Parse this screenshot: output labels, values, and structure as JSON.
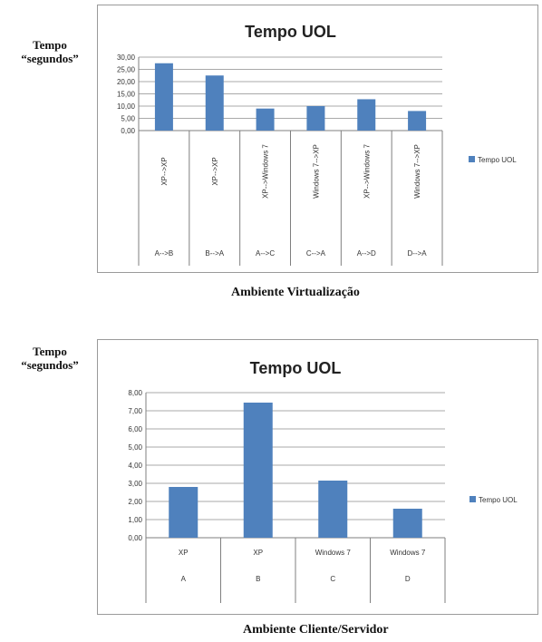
{
  "colors": {
    "bar": "#4f81bd",
    "grid": "#8c8c8c",
    "axis": "#7f7f7f",
    "text": "#333333"
  },
  "side_label": {
    "line1": "Tempo",
    "line2": "“segundos”"
  },
  "chart_data": [
    {
      "type": "bar",
      "title": "Tempo UOL",
      "legend": "Tempo UOL",
      "legend_position": "right",
      "grid": true,
      "ylim": [
        0,
        30
      ],
      "yticks": [
        "0,00",
        "5,00",
        "10,00",
        "15,00",
        "20,00",
        "25,00",
        "30,00"
      ],
      "categories": [
        {
          "top": "XP-->XP",
          "bottom": "A-->B"
        },
        {
          "top": "XP-->XP",
          "bottom": "B-->A"
        },
        {
          "top": "XP-->Windows 7",
          "bottom": "A-->C"
        },
        {
          "top": "Windows 7-->XP",
          "bottom": "C-->A"
        },
        {
          "top": "XP-->Windows 7",
          "bottom": "A-->D"
        },
        {
          "top": "Windows 7-->XP",
          "bottom": "D-->A"
        }
      ],
      "values": [
        27.5,
        22.5,
        9.0,
        10.0,
        12.8,
        8.0
      ],
      "caption": "Ambiente Virtualização"
    },
    {
      "type": "bar",
      "title": "Tempo UOL",
      "legend": "Tempo UOL",
      "legend_position": "right",
      "grid": true,
      "ylim": [
        0,
        8
      ],
      "yticks": [
        "0,00",
        "1,00",
        "2,00",
        "3,00",
        "4,00",
        "5,00",
        "6,00",
        "7,00",
        "8,00"
      ],
      "categories": [
        {
          "top": "XP",
          "bottom": "A"
        },
        {
          "top": "XP",
          "bottom": "B"
        },
        {
          "top": "Windows 7",
          "bottom": "C"
        },
        {
          "top": "Windows 7",
          "bottom": "D"
        }
      ],
      "values": [
        2.8,
        7.45,
        3.15,
        1.6
      ],
      "caption": "Ambiente Cliente/Servidor"
    }
  ]
}
